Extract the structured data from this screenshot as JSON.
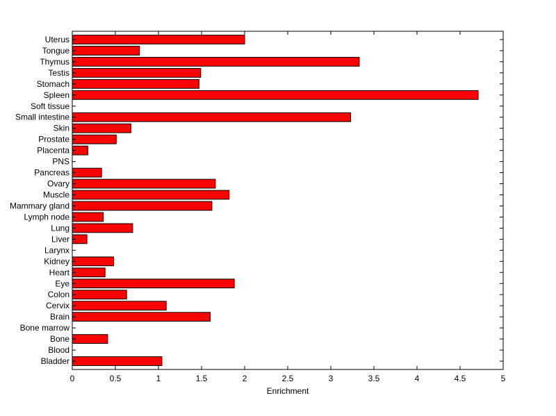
{
  "chart_data": {
    "type": "bar",
    "orientation": "horizontal",
    "title": "",
    "xlabel": "Enrichment",
    "ylabel": "",
    "xlim": [
      0,
      5
    ],
    "xticks": [
      "0",
      "0.5",
      "1",
      "1.5",
      "2",
      "2.5",
      "3",
      "3.5",
      "4",
      "4.5",
      "5"
    ],
    "grid": false,
    "bar_color": "#ff0000",
    "edge_color": "#000000",
    "categories": [
      "Uterus",
      "Tongue",
      "Thymus",
      "Testis",
      "Stomach",
      "Spleen",
      "Soft tissue",
      "Small intestine",
      "Skin",
      "Prostate",
      "Placenta",
      "PNS",
      "Pancreas",
      "Ovary",
      "Muscle",
      "Mammary gland",
      "Lymph node",
      "Lung",
      "Liver",
      "Larynx",
      "Kidney",
      "Heart",
      "Eye",
      "Colon",
      "Cervix",
      "Brain",
      "Bone marrow",
      "Bone",
      "Blood",
      "Bladder"
    ],
    "values": [
      2.0,
      0.78,
      3.33,
      1.49,
      1.47,
      4.71,
      0,
      3.23,
      0.68,
      0.51,
      0.18,
      0,
      0.34,
      1.66,
      1.82,
      1.62,
      0.36,
      0.7,
      0.17,
      0,
      0.48,
      0.38,
      1.88,
      0.63,
      1.09,
      1.6,
      0,
      0.41,
      0,
      1.04
    ]
  }
}
